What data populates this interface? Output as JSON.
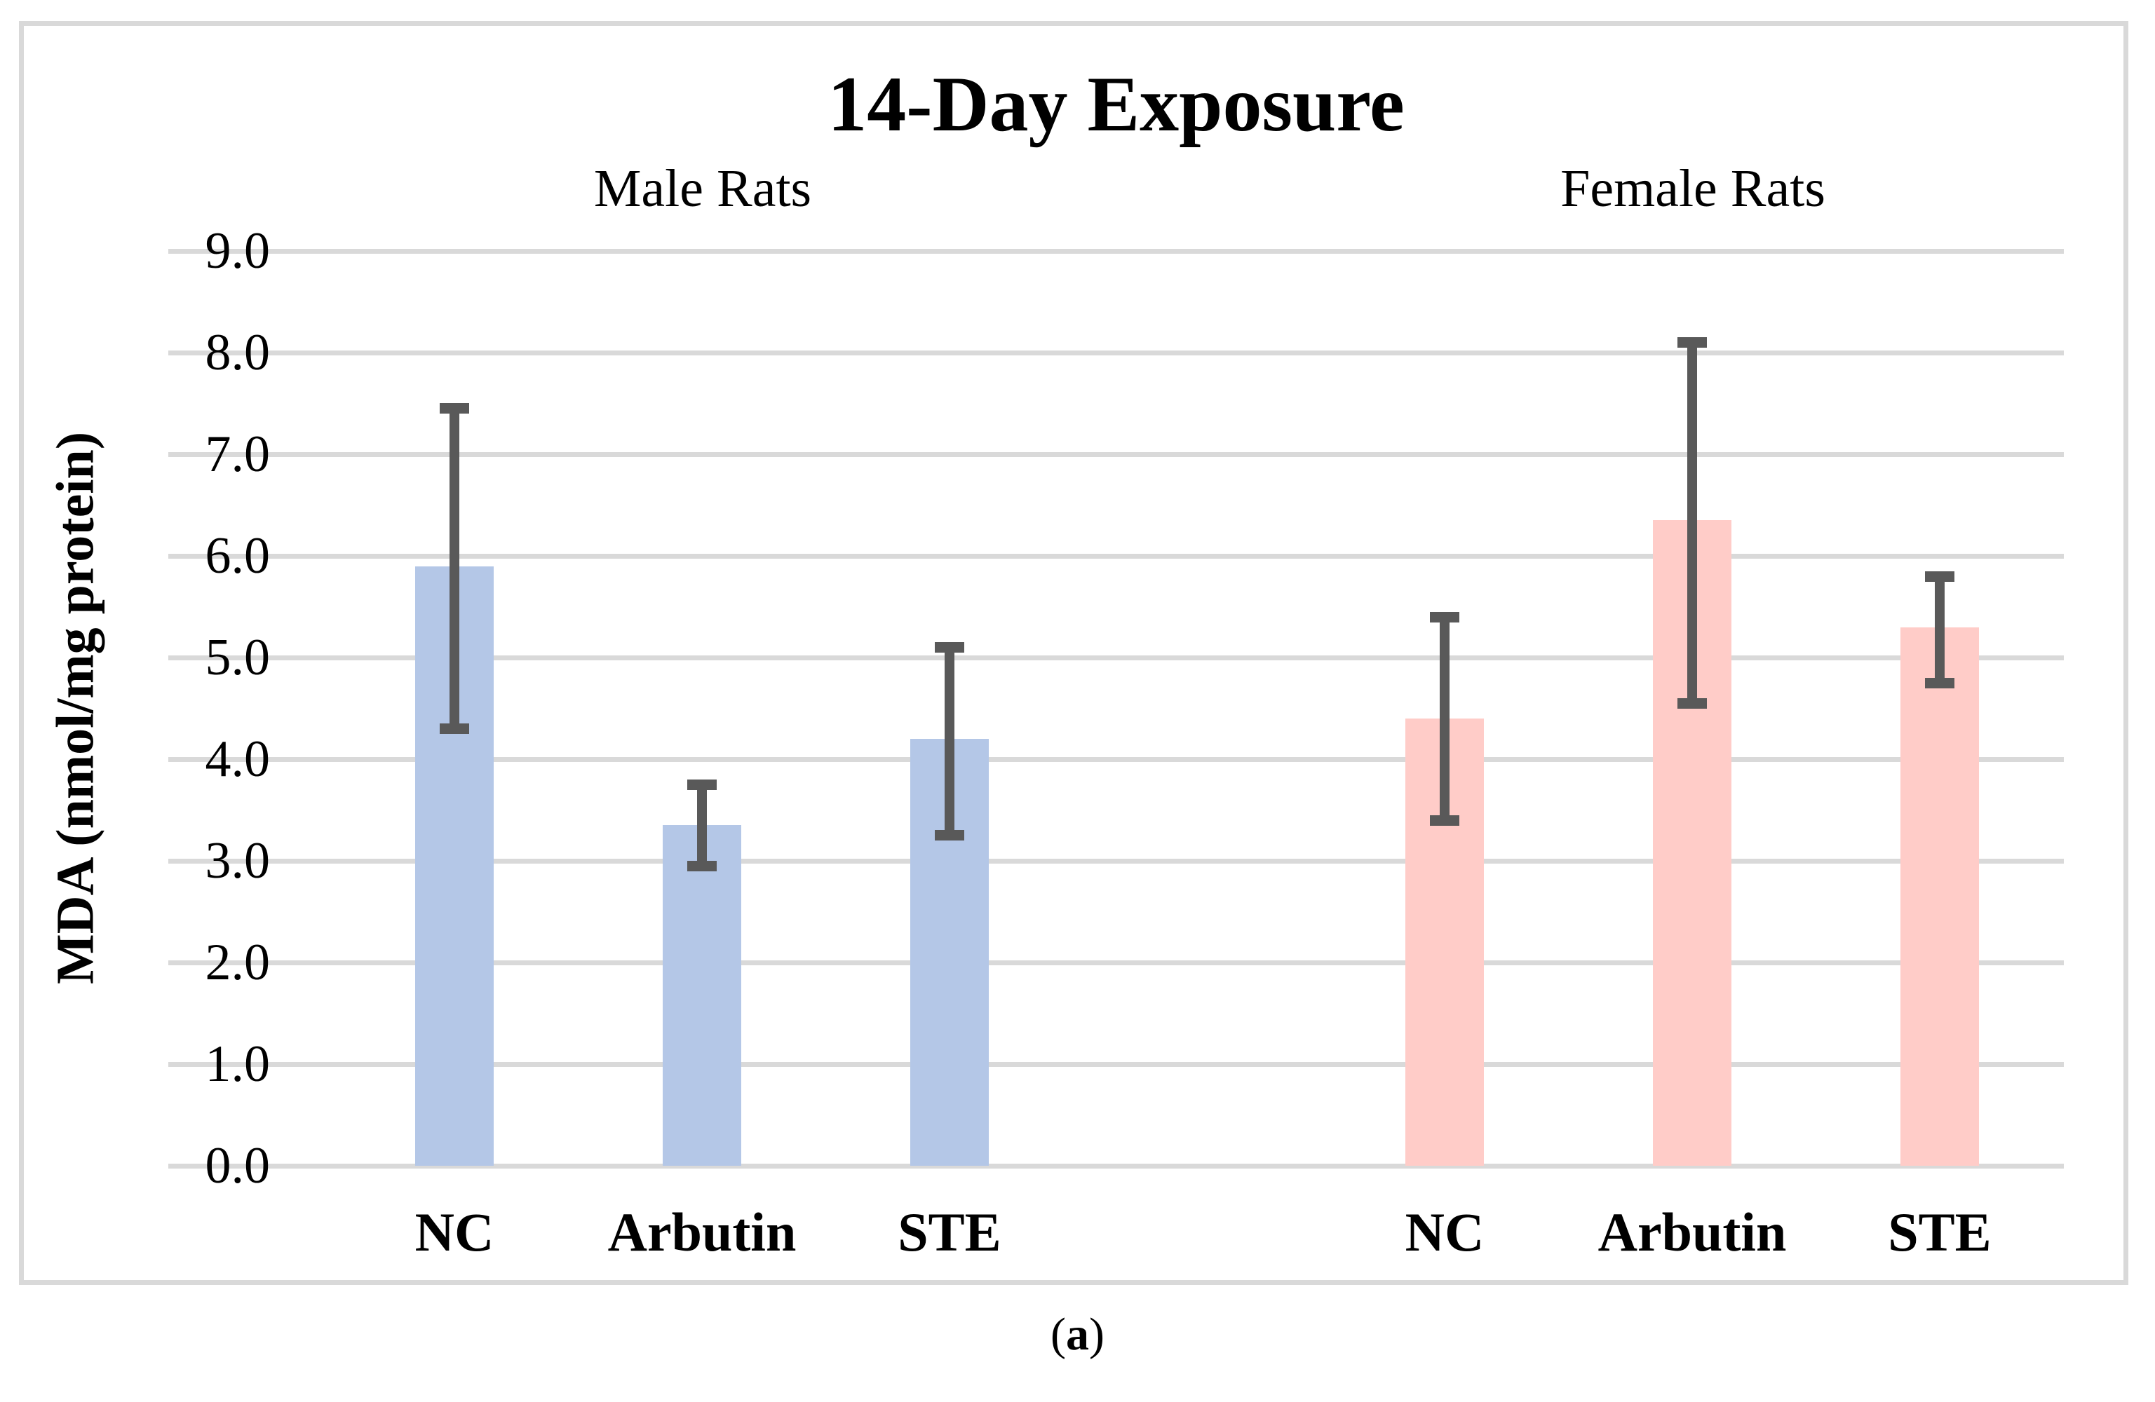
{
  "figure": {
    "caption": {
      "open": "(",
      "letter": "a",
      "close": ")"
    }
  },
  "chart_data": {
    "type": "bar",
    "title": "14-Day Exposure",
    "xlabel": "",
    "ylabel": "MDA (nmol/mg protein)",
    "ylim": [
      0.0,
      9.0
    ],
    "ytick_step": 1.0,
    "yticks": [
      "9.0",
      "8.0",
      "7.0",
      "6.0",
      "5.0",
      "4.0",
      "3.0",
      "2.0",
      "1.0",
      "0.0"
    ],
    "grid": true,
    "gridline_color": "#d9d9d9",
    "error_bar_color": "#595959",
    "legend_position": "none",
    "groups": [
      {
        "key": "male",
        "label": "Male Rats",
        "color": "#b4c7e7",
        "categories": [
          "NC",
          "Arbutin",
          "STE"
        ],
        "values": [
          5.9,
          3.35,
          4.2
        ],
        "error_low": [
          4.3,
          2.95,
          3.25
        ],
        "error_high": [
          7.45,
          3.75,
          5.1
        ]
      },
      {
        "key": "female",
        "label": "Female Rats",
        "color": "#ffccc8",
        "categories": [
          "NC",
          "Arbutin",
          "STE"
        ],
        "values": [
          4.4,
          6.35,
          5.3
        ],
        "error_low": [
          3.4,
          4.55,
          4.75
        ],
        "error_high": [
          5.4,
          8.1,
          5.8
        ]
      }
    ]
  }
}
